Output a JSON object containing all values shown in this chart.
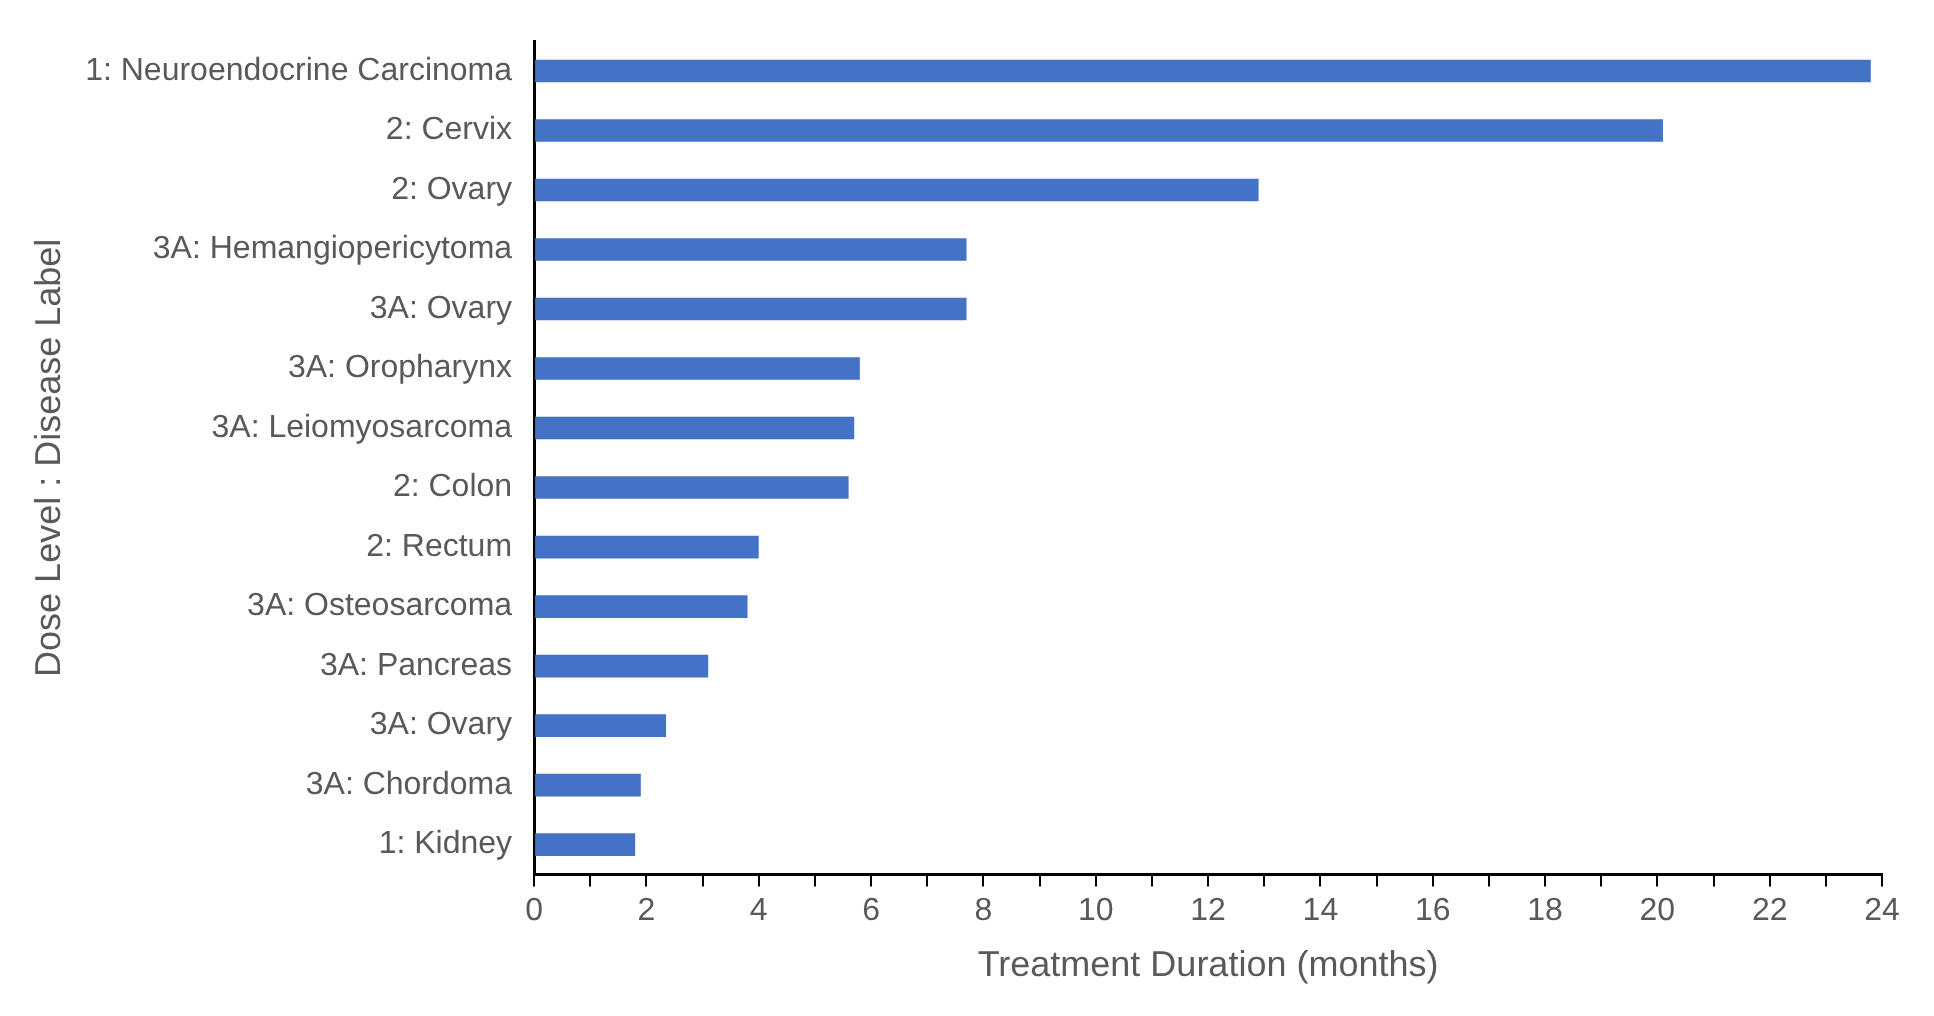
{
  "chart_data": {
    "type": "bar",
    "orientation": "horizontal",
    "xlabel": "Treatment Duration (months)",
    "ylabel": "Dose Level : Disease Label",
    "categories": [
      "1: Neuroendocrine Carcinoma",
      "2: Cervix",
      "2: Ovary",
      "3A: Hemangiopericytoma",
      "3A: Ovary",
      "3A: Oropharynx",
      "3A: Leiomyosarcoma",
      "2: Colon",
      "2: Rectum",
      "3A: Osteosarcoma",
      "3A: Pancreas",
      "3A: Ovary",
      "3A: Chordoma",
      "1: Kidney"
    ],
    "values": [
      23.8,
      20.1,
      12.9,
      7.7,
      7.7,
      5.8,
      5.7,
      5.6,
      4.0,
      3.8,
      3.1,
      2.35,
      1.9,
      1.8
    ],
    "color": "#4472c4",
    "xlim": [
      0,
      24
    ],
    "xticks": [
      0,
      {
        "value": 1,
        "label": null
      },
      2,
      {
        "value": 3,
        "label": null
      },
      4,
      {
        "value": 5,
        "label": null
      },
      6,
      {
        "value": 7,
        "label": null
      },
      8,
      {
        "value": 9,
        "label": null
      },
      10,
      {
        "value": 11,
        "label": null
      },
      12,
      {
        "value": 13,
        "label": null
      },
      14,
      {
        "value": 15,
        "label": null
      },
      16,
      {
        "value": 17,
        "label": null
      },
      18,
      {
        "value": 19,
        "label": null
      },
      20,
      {
        "value": 21,
        "label": null
      },
      22,
      {
        "value": 23,
        "label": null
      },
      24
    ],
    "grid": false,
    "legend": false
  }
}
